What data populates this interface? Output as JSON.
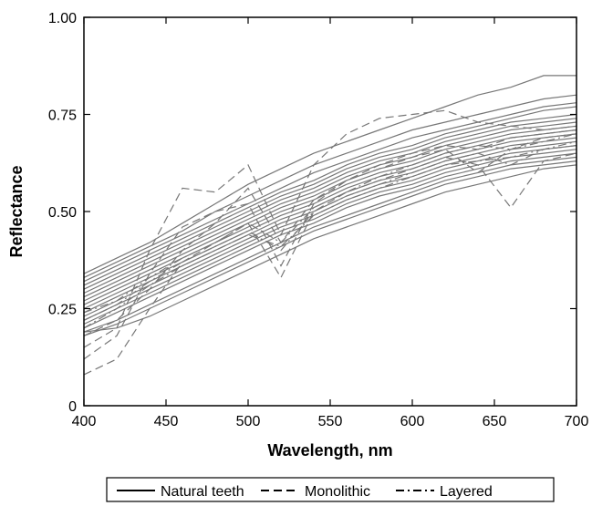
{
  "chart_data": {
    "type": "line",
    "title": "",
    "xlabel": "Wavelength, nm",
    "ylabel": "Reflectance",
    "xlim": [
      400,
      700
    ],
    "ylim": [
      0,
      1
    ],
    "x_ticks": [
      400,
      450,
      500,
      550,
      600,
      650,
      700
    ],
    "x_tick_labels": [
      "400",
      "450",
      "500",
      "550",
      "600",
      "650",
      "700"
    ],
    "y_ticks": [
      0,
      0.25,
      0.5,
      0.75,
      1.0
    ],
    "y_tick_labels": [
      "0",
      "0.25",
      "0.50",
      "0.75",
      "1.00"
    ],
    "grid": false,
    "legend_position": "bottom",
    "legend": [
      {
        "label": "Natural teeth",
        "style": "solid"
      },
      {
        "label": "Monolithic",
        "style": "dashed"
      },
      {
        "label": "Layered",
        "style": "dashdot"
      }
    ],
    "colors": {
      "lines": "#777777",
      "axes": "#000000"
    },
    "x": [
      400,
      420,
      440,
      460,
      480,
      500,
      520,
      540,
      560,
      580,
      600,
      620,
      640,
      660,
      680,
      700
    ],
    "series": [
      {
        "style": "solid",
        "values": [
          0.34,
          0.38,
          0.42,
          0.47,
          0.52,
          0.57,
          0.61,
          0.65,
          0.68,
          0.71,
          0.74,
          0.77,
          0.8,
          0.82,
          0.85,
          0.85
        ]
      },
      {
        "style": "solid",
        "values": [
          0.33,
          0.37,
          0.41,
          0.45,
          0.5,
          0.54,
          0.58,
          0.62,
          0.65,
          0.68,
          0.71,
          0.73,
          0.75,
          0.77,
          0.79,
          0.8
        ]
      },
      {
        "style": "solid",
        "values": [
          0.32,
          0.36,
          0.4,
          0.44,
          0.48,
          0.52,
          0.56,
          0.6,
          0.63,
          0.66,
          0.69,
          0.71,
          0.73,
          0.75,
          0.77,
          0.78
        ]
      },
      {
        "style": "solid",
        "values": [
          0.31,
          0.35,
          0.39,
          0.43,
          0.47,
          0.51,
          0.55,
          0.58,
          0.62,
          0.65,
          0.67,
          0.7,
          0.72,
          0.74,
          0.76,
          0.77
        ]
      },
      {
        "style": "solid",
        "values": [
          0.3,
          0.34,
          0.38,
          0.42,
          0.46,
          0.5,
          0.54,
          0.57,
          0.61,
          0.64,
          0.66,
          0.69,
          0.71,
          0.73,
          0.74,
          0.75
        ]
      },
      {
        "style": "solid",
        "values": [
          0.29,
          0.33,
          0.37,
          0.41,
          0.45,
          0.49,
          0.53,
          0.56,
          0.6,
          0.63,
          0.65,
          0.68,
          0.7,
          0.72,
          0.73,
          0.74
        ]
      },
      {
        "style": "solid",
        "values": [
          0.28,
          0.32,
          0.36,
          0.4,
          0.44,
          0.48,
          0.52,
          0.55,
          0.59,
          0.62,
          0.64,
          0.67,
          0.69,
          0.71,
          0.72,
          0.73
        ]
      },
      {
        "style": "solid",
        "values": [
          0.27,
          0.31,
          0.35,
          0.39,
          0.43,
          0.47,
          0.51,
          0.54,
          0.58,
          0.61,
          0.63,
          0.66,
          0.68,
          0.7,
          0.71,
          0.72
        ]
      },
      {
        "style": "solid",
        "values": [
          0.26,
          0.3,
          0.34,
          0.38,
          0.42,
          0.46,
          0.5,
          0.53,
          0.57,
          0.6,
          0.62,
          0.65,
          0.67,
          0.69,
          0.7,
          0.71
        ]
      },
      {
        "style": "solid",
        "values": [
          0.25,
          0.29,
          0.33,
          0.37,
          0.41,
          0.45,
          0.49,
          0.52,
          0.56,
          0.59,
          0.61,
          0.64,
          0.66,
          0.68,
          0.69,
          0.7
        ]
      },
      {
        "style": "solid",
        "values": [
          0.24,
          0.28,
          0.32,
          0.36,
          0.4,
          0.44,
          0.48,
          0.51,
          0.55,
          0.58,
          0.6,
          0.63,
          0.65,
          0.67,
          0.68,
          0.69
        ]
      },
      {
        "style": "solid",
        "values": [
          0.23,
          0.27,
          0.31,
          0.35,
          0.39,
          0.43,
          0.47,
          0.5,
          0.54,
          0.57,
          0.59,
          0.62,
          0.64,
          0.66,
          0.67,
          0.68
        ]
      },
      {
        "style": "solid",
        "values": [
          0.22,
          0.26,
          0.3,
          0.34,
          0.38,
          0.42,
          0.46,
          0.49,
          0.53,
          0.56,
          0.58,
          0.61,
          0.63,
          0.65,
          0.66,
          0.67
        ]
      },
      {
        "style": "solid",
        "values": [
          0.21,
          0.25,
          0.29,
          0.33,
          0.37,
          0.41,
          0.45,
          0.48,
          0.52,
          0.55,
          0.57,
          0.6,
          0.62,
          0.64,
          0.65,
          0.66
        ]
      },
      {
        "style": "solid",
        "values": [
          0.2,
          0.24,
          0.28,
          0.32,
          0.36,
          0.4,
          0.44,
          0.47,
          0.51,
          0.54,
          0.56,
          0.59,
          0.61,
          0.63,
          0.64,
          0.65
        ]
      },
      {
        "style": "solid",
        "values": [
          0.19,
          0.22,
          0.26,
          0.3,
          0.34,
          0.38,
          0.42,
          0.46,
          0.49,
          0.52,
          0.55,
          0.58,
          0.6,
          0.62,
          0.63,
          0.64
        ]
      },
      {
        "style": "solid",
        "values": [
          0.18,
          0.21,
          0.25,
          0.29,
          0.33,
          0.37,
          0.41,
          0.45,
          0.48,
          0.51,
          0.54,
          0.57,
          0.59,
          0.61,
          0.62,
          0.63
        ]
      },
      {
        "style": "solid",
        "values": [
          0.19,
          0.2,
          0.23,
          0.27,
          0.31,
          0.35,
          0.39,
          0.43,
          0.46,
          0.49,
          0.52,
          0.55,
          0.57,
          0.59,
          0.61,
          0.62
        ]
      },
      {
        "style": "dashed",
        "values": [
          0.15,
          0.2,
          0.4,
          0.56,
          0.55,
          0.62,
          0.44,
          0.62,
          0.7,
          0.74,
          0.75,
          0.76,
          0.73,
          0.72,
          0.71,
          0.72
        ]
      },
      {
        "style": "dashed",
        "values": [
          0.12,
          0.18,
          0.34,
          0.46,
          0.5,
          0.52,
          0.36,
          0.52,
          0.58,
          0.61,
          0.64,
          0.66,
          0.6,
          0.66,
          0.69,
          0.7
        ]
      },
      {
        "style": "dashed",
        "values": [
          0.08,
          0.12,
          0.25,
          0.37,
          0.42,
          0.47,
          0.33,
          0.5,
          0.55,
          0.58,
          0.61,
          0.64,
          0.62,
          0.51,
          0.63,
          0.65
        ]
      },
      {
        "style": "dashed",
        "values": [
          0.18,
          0.22,
          0.3,
          0.4,
          0.47,
          0.56,
          0.42,
          0.53,
          0.58,
          0.62,
          0.65,
          0.67,
          0.66,
          0.69,
          0.7,
          0.71
        ]
      },
      {
        "style": "dashdot",
        "values": [
          0.22,
          0.26,
          0.32,
          0.37,
          0.41,
          0.45,
          0.4,
          0.5,
          0.54,
          0.57,
          0.6,
          0.63,
          0.65,
          0.62,
          0.66,
          0.68
        ]
      },
      {
        "style": "dashdot",
        "values": [
          0.24,
          0.27,
          0.33,
          0.38,
          0.42,
          0.47,
          0.42,
          0.51,
          0.55,
          0.59,
          0.62,
          0.65,
          0.67,
          0.66,
          0.68,
          0.7
        ]
      },
      {
        "style": "dashdot",
        "values": [
          0.2,
          0.25,
          0.31,
          0.36,
          0.4,
          0.44,
          0.41,
          0.49,
          0.53,
          0.56,
          0.59,
          0.62,
          0.63,
          0.64,
          0.66,
          0.67
        ]
      }
    ]
  }
}
